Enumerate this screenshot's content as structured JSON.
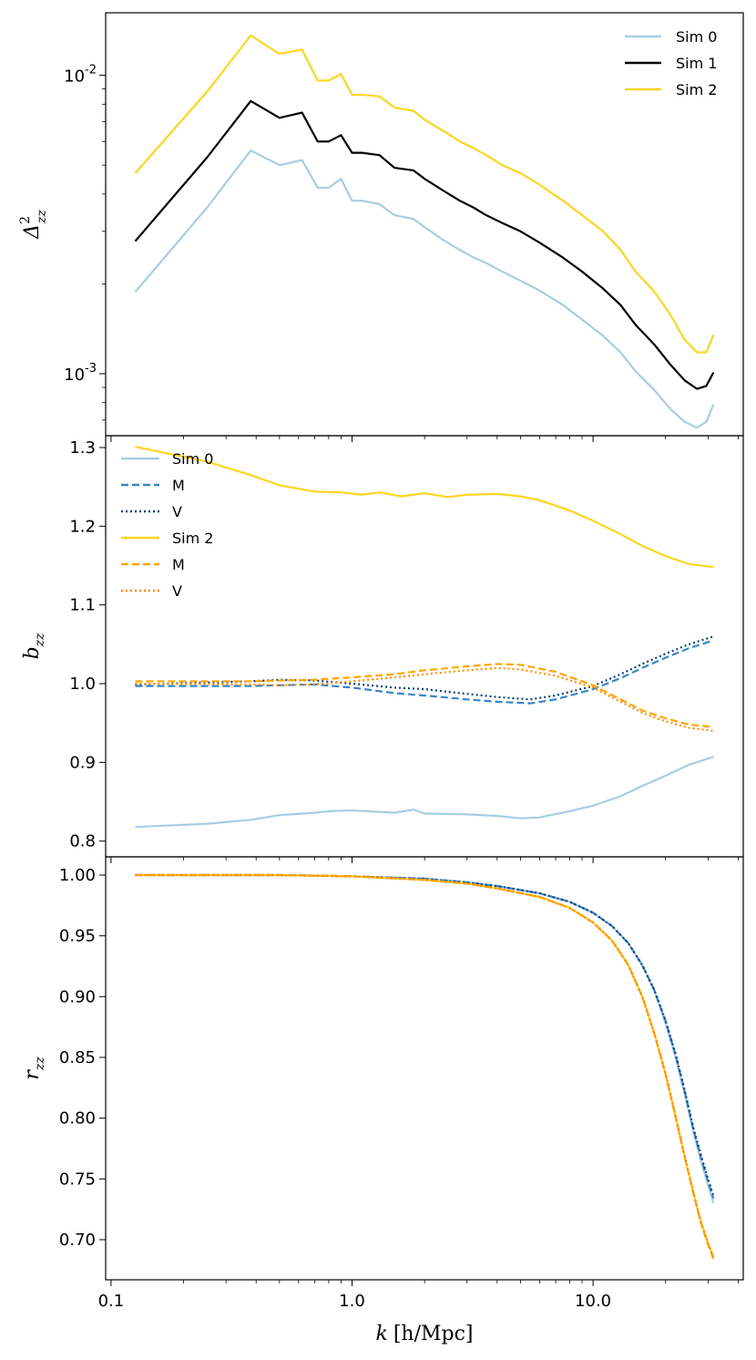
{
  "colors": {
    "sim0": "#a6cee3",
    "sim1": "#000000",
    "sim2": "#fdd520",
    "m_blue": "#3a86c8",
    "v_blue": "#0e3f7a",
    "m_orange": "#ffa500",
    "v_orange": "#ff8c00"
  },
  "chart_data": [
    {
      "type": "line",
      "panel": "top",
      "ylabel": "Δ²_zz",
      "ylabel_main": "Δ",
      "ylabel_sup": "2",
      "ylabel_sub": "zz",
      "yscale": "log",
      "xscale": "log",
      "xlim": [
        0.095,
        42
      ],
      "ylim": [
        0.00062,
        0.0162
      ],
      "yticks": [
        {
          "value": 0.001,
          "base": "10",
          "exp": "-3"
        },
        {
          "value": 0.01,
          "base": "10",
          "exp": "-2"
        }
      ],
      "legend_position": "top-right",
      "legend": [
        "Sim 0",
        "Sim 1",
        "Sim 2"
      ],
      "series": [
        {
          "name": "Sim 0",
          "color_key": "sim0",
          "style": "solid",
          "x": [
            0.126,
            0.25,
            0.38,
            0.5,
            0.62,
            0.72,
            0.8,
            0.9,
            1.0,
            1.1,
            1.3,
            1.5,
            1.8,
            2.0,
            2.4,
            2.8,
            3.2,
            3.6,
            4.2,
            5.0,
            6.0,
            7.5,
            9.0,
            11.0,
            13.0,
            15.0,
            18.0,
            21.0,
            24.0,
            27.0,
            29.5,
            31.6
          ],
          "y": [
            0.00188,
            0.0036,
            0.0056,
            0.005,
            0.0052,
            0.0042,
            0.0042,
            0.0045,
            0.0038,
            0.0038,
            0.0037,
            0.0034,
            0.0033,
            0.0031,
            0.0028,
            0.0026,
            0.00245,
            0.00235,
            0.0022,
            0.00205,
            0.0019,
            0.0017,
            0.00152,
            0.00134,
            0.00118,
            0.00102,
            0.00088,
            0.00076,
            0.00069,
            0.00066,
            0.00069,
            0.00079
          ]
        },
        {
          "name": "Sim 1",
          "color_key": "sim1",
          "style": "solid",
          "x": [
            0.126,
            0.25,
            0.38,
            0.5,
            0.62,
            0.72,
            0.8,
            0.9,
            1.0,
            1.1,
            1.3,
            1.5,
            1.8,
            2.0,
            2.4,
            2.8,
            3.2,
            3.6,
            4.2,
            5.0,
            6.0,
            7.5,
            9.0,
            11.0,
            13.0,
            15.0,
            18.0,
            21.0,
            24.0,
            27.0,
            29.5,
            31.6
          ],
          "y": [
            0.00278,
            0.0053,
            0.0082,
            0.0072,
            0.0075,
            0.006,
            0.006,
            0.0063,
            0.0055,
            0.0055,
            0.0054,
            0.0049,
            0.0048,
            0.0045,
            0.0041,
            0.0038,
            0.0036,
            0.0034,
            0.0032,
            0.003,
            0.00275,
            0.00245,
            0.0022,
            0.00193,
            0.0017,
            0.00146,
            0.00125,
            0.00107,
            0.00095,
            0.00089,
            0.00091,
            0.00101
          ]
        },
        {
          "name": "Sim 2",
          "color_key": "sim2",
          "style": "solid",
          "x": [
            0.126,
            0.25,
            0.38,
            0.5,
            0.62,
            0.72,
            0.8,
            0.9,
            1.0,
            1.1,
            1.3,
            1.5,
            1.8,
            2.0,
            2.4,
            2.8,
            3.2,
            3.6,
            4.2,
            5.0,
            6.0,
            7.5,
            9.0,
            11.0,
            13.0,
            15.0,
            18.0,
            21.0,
            24.0,
            27.0,
            29.5,
            31.6
          ],
          "y": [
            0.0047,
            0.0088,
            0.0136,
            0.0118,
            0.0122,
            0.0096,
            0.0096,
            0.0101,
            0.0086,
            0.0086,
            0.0085,
            0.0078,
            0.0076,
            0.0071,
            0.0065,
            0.006,
            0.0057,
            0.0054,
            0.005,
            0.0047,
            0.0043,
            0.0038,
            0.0034,
            0.003,
            0.0026,
            0.0022,
            0.00188,
            0.00157,
            0.0013,
            0.00118,
            0.00118,
            0.00135
          ]
        }
      ]
    },
    {
      "type": "line",
      "panel": "middle",
      "ylabel": "b_zz",
      "ylabel_main": "b",
      "ylabel_sub": "zz",
      "xscale": "log",
      "xlim": [
        0.095,
        42
      ],
      "ylim": [
        0.78,
        1.315
      ],
      "yticks": [
        "0.8",
        "0.9",
        "1.0",
        "1.1",
        "1.2",
        "1.3"
      ],
      "legend_position": "top-left",
      "legend": [
        "Sim 0",
        "M",
        "V",
        "Sim 2",
        "M",
        "V"
      ],
      "series": [
        {
          "name": "Sim 0",
          "color_key": "sim0",
          "style": "solid",
          "x": [
            0.126,
            0.25,
            0.38,
            0.5,
            0.7,
            0.8,
            1.0,
            1.5,
            1.8,
            2.0,
            3.0,
            4.0,
            5.0,
            6.0,
            8.0,
            10.0,
            13.0,
            16.0,
            20.0,
            25.0,
            31.6
          ],
          "y": [
            0.818,
            0.822,
            0.827,
            0.833,
            0.836,
            0.838,
            0.839,
            0.836,
            0.84,
            0.835,
            0.834,
            0.832,
            0.829,
            0.83,
            0.838,
            0.845,
            0.857,
            0.87,
            0.883,
            0.897,
            0.907
          ]
        },
        {
          "name": "M",
          "color_key": "m_blue",
          "style": "dashed",
          "x": [
            0.126,
            0.38,
            0.5,
            0.7,
            1.0,
            1.5,
            2.0,
            3.0,
            4.0,
            5.5,
            7.0,
            10.0,
            13.0,
            16.0,
            20.0,
            25.0,
            31.6
          ],
          "y": [
            0.997,
            0.997,
            0.998,
            0.999,
            0.995,
            0.988,
            0.985,
            0.98,
            0.977,
            0.975,
            0.98,
            0.993,
            1.007,
            1.02,
            1.033,
            1.045,
            1.055
          ]
        },
        {
          "name": "V",
          "color_key": "v_blue",
          "style": "dotted",
          "x": [
            0.126,
            0.38,
            0.5,
            0.7,
            1.0,
            1.5,
            2.0,
            3.0,
            4.0,
            5.5,
            7.0,
            10.0,
            13.0,
            16.0,
            20.0,
            25.0,
            31.6
          ],
          "y": [
            0.999,
            1.003,
            1.005,
            1.004,
            1.0,
            0.995,
            0.993,
            0.987,
            0.983,
            0.98,
            0.985,
            0.997,
            1.012,
            1.025,
            1.038,
            1.05,
            1.06
          ]
        },
        {
          "name": "Sim 2",
          "color_key": "sim2",
          "style": "solid",
          "x": [
            0.126,
            0.25,
            0.38,
            0.5,
            0.7,
            0.9,
            1.1,
            1.3,
            1.6,
            2.0,
            2.5,
            3.0,
            4.0,
            5.0,
            6.0,
            8.0,
            10.0,
            13.0,
            16.0,
            20.0,
            25.0,
            31.6
          ],
          "y": [
            1.301,
            1.282,
            1.265,
            1.252,
            1.244,
            1.243,
            1.24,
            1.243,
            1.238,
            1.242,
            1.237,
            1.24,
            1.241,
            1.238,
            1.233,
            1.22,
            1.207,
            1.19,
            1.175,
            1.162,
            1.152,
            1.148
          ]
        },
        {
          "name": "M",
          "color_key": "m_orange",
          "style": "dashed",
          "x": [
            0.126,
            0.38,
            0.5,
            0.7,
            1.0,
            1.5,
            2.0,
            3.0,
            4.0,
            5.0,
            7.0,
            10.0,
            13.0,
            16.0,
            20.0,
            25.0,
            31.6
          ],
          "y": [
            1.003,
            1.003,
            1.004,
            1.005,
            1.008,
            1.012,
            1.017,
            1.022,
            1.025,
            1.024,
            1.015,
            0.998,
            0.98,
            0.966,
            0.956,
            0.948,
            0.945
          ]
        },
        {
          "name": "V",
          "color_key": "v_orange",
          "style": "dotted",
          "x": [
            0.126,
            0.38,
            0.5,
            0.7,
            1.0,
            1.5,
            2.0,
            3.0,
            4.0,
            5.0,
            7.0,
            10.0,
            13.0,
            16.0,
            20.0,
            25.0,
            31.6
          ],
          "y": [
            1.0,
            0.999,
            0.998,
            0.999,
            1.003,
            1.008,
            1.012,
            1.017,
            1.02,
            1.018,
            1.01,
            0.995,
            0.977,
            0.963,
            0.952,
            0.944,
            0.94
          ]
        }
      ]
    },
    {
      "type": "line",
      "panel": "bottom",
      "ylabel": "r_zz",
      "ylabel_main": "r",
      "ylabel_sub": "zz",
      "xscale": "log",
      "xlabel": "k [h/Mpc]",
      "xlabel_k": "k",
      "xlabel_units": "[h/Mpc]",
      "xlim": [
        0.095,
        42
      ],
      "ylim": [
        0.667,
        1.015
      ],
      "yticks": [
        "0.70",
        "0.75",
        "0.80",
        "0.85",
        "0.90",
        "0.95",
        "1.00"
      ],
      "xticks": [
        {
          "value": 0.1,
          "label": "0.1"
        },
        {
          "value": 1.0,
          "label": "1.0"
        },
        {
          "value": 10.0,
          "label": "10.0"
        }
      ],
      "series": [
        {
          "name": "Sim 0",
          "color_key": "sim0",
          "style": "solid",
          "x": [
            0.126,
            0.5,
            1.0,
            2.0,
            3.0,
            4.0,
            6.0,
            8.0,
            10.0,
            12.0,
            14.0,
            16.0,
            18.0,
            20.0,
            22.0,
            24.0,
            26.0,
            28.0,
            30.0,
            31.6
          ],
          "y": [
            1.0,
            1.0,
            0.999,
            0.997,
            0.994,
            0.991,
            0.985,
            0.978,
            0.969,
            0.958,
            0.944,
            0.926,
            0.904,
            0.878,
            0.85,
            0.82,
            0.79,
            0.765,
            0.745,
            0.73
          ]
        },
        {
          "name": "Sim 0 M",
          "color_key": "m_blue",
          "style": "dashed",
          "x": [
            0.126,
            0.5,
            1.0,
            2.0,
            3.0,
            4.0,
            6.0,
            8.0,
            10.0,
            12.0,
            14.0,
            16.0,
            18.0,
            20.0,
            22.0,
            24.0,
            26.0,
            28.0,
            30.0,
            31.6
          ],
          "y": [
            1.0,
            1.0,
            0.999,
            0.997,
            0.994,
            0.991,
            0.985,
            0.978,
            0.969,
            0.958,
            0.944,
            0.926,
            0.905,
            0.88,
            0.852,
            0.822,
            0.792,
            0.768,
            0.748,
            0.734
          ]
        },
        {
          "name": "Sim 0 V",
          "color_key": "v_blue",
          "style": "dotted",
          "x": [
            0.126,
            0.5,
            1.0,
            2.0,
            3.0,
            4.0,
            6.0,
            8.0,
            10.0,
            12.0,
            14.0,
            16.0,
            18.0,
            20.0,
            22.0,
            24.0,
            26.0,
            28.0,
            30.0,
            31.6
          ],
          "y": [
            1.0,
            1.0,
            0.999,
            0.997,
            0.994,
            0.991,
            0.985,
            0.978,
            0.969,
            0.958,
            0.944,
            0.926,
            0.905,
            0.88,
            0.853,
            0.823,
            0.793,
            0.77,
            0.75,
            0.736
          ]
        },
        {
          "name": "Sim 2",
          "color_key": "sim2",
          "style": "solid",
          "x": [
            0.126,
            0.5,
            1.0,
            2.0,
            3.0,
            4.0,
            6.0,
            8.0,
            10.0,
            12.0,
            14.0,
            16.0,
            18.0,
            20.0,
            22.0,
            24.0,
            26.0,
            28.0,
            30.0,
            31.6
          ],
          "y": [
            1.0,
            1.0,
            0.999,
            0.996,
            0.993,
            0.989,
            0.982,
            0.973,
            0.961,
            0.946,
            0.926,
            0.9,
            0.869,
            0.836,
            0.801,
            0.768,
            0.74,
            0.715,
            0.697,
            0.685
          ]
        },
        {
          "name": "Sim 2 M",
          "color_key": "m_orange",
          "style": "dashed",
          "x": [
            0.126,
            0.5,
            1.0,
            2.0,
            3.0,
            4.0,
            6.0,
            8.0,
            10.0,
            12.0,
            14.0,
            16.0,
            18.0,
            20.0,
            22.0,
            24.0,
            26.0,
            28.0,
            30.0,
            31.6
          ],
          "y": [
            1.0,
            1.0,
            0.999,
            0.996,
            0.993,
            0.989,
            0.982,
            0.973,
            0.961,
            0.946,
            0.926,
            0.9,
            0.869,
            0.836,
            0.801,
            0.768,
            0.739,
            0.714,
            0.696,
            0.684
          ]
        },
        {
          "name": "Sim 2 V",
          "color_key": "v_orange",
          "style": "dotted",
          "x": [
            0.126,
            0.5,
            1.0,
            2.0,
            3.0,
            4.0,
            6.0,
            8.0,
            10.0,
            12.0,
            14.0,
            16.0,
            18.0,
            20.0,
            22.0,
            24.0,
            26.0,
            28.0,
            30.0,
            31.6
          ],
          "y": [
            1.0,
            1.0,
            0.999,
            0.996,
            0.993,
            0.989,
            0.982,
            0.973,
            0.961,
            0.946,
            0.926,
            0.9,
            0.869,
            0.837,
            0.802,
            0.769,
            0.74,
            0.715,
            0.697,
            0.686
          ]
        }
      ]
    }
  ]
}
